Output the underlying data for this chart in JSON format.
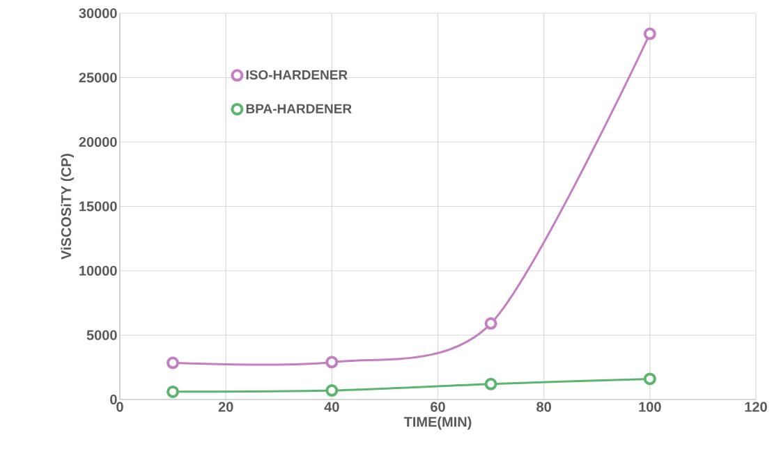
{
  "chart_data": {
    "type": "line",
    "xlabel": "TIME(MIN)",
    "ylabel": "ViSCOSiTY (CP)",
    "x": [
      10,
      40,
      70,
      100
    ],
    "series": [
      {
        "name": "ISO-HARDENER",
        "color": "#c47fc2",
        "values": [
          2850,
          2900,
          5900,
          28400
        ]
      },
      {
        "name": "BPA-HARDENER",
        "color": "#5bb56f",
        "values": [
          600,
          700,
          1200,
          1600
        ]
      }
    ],
    "xlim": [
      0,
      120
    ],
    "xticks": [
      0,
      20,
      40,
      60,
      80,
      100,
      120
    ],
    "ylim": [
      0,
      30000
    ],
    "yticks": [
      0,
      5000,
      10000,
      15000,
      20000,
      25000,
      30000
    ],
    "grid": true,
    "legend": "top left",
    "marker": "circle",
    "line_style": "solid"
  }
}
